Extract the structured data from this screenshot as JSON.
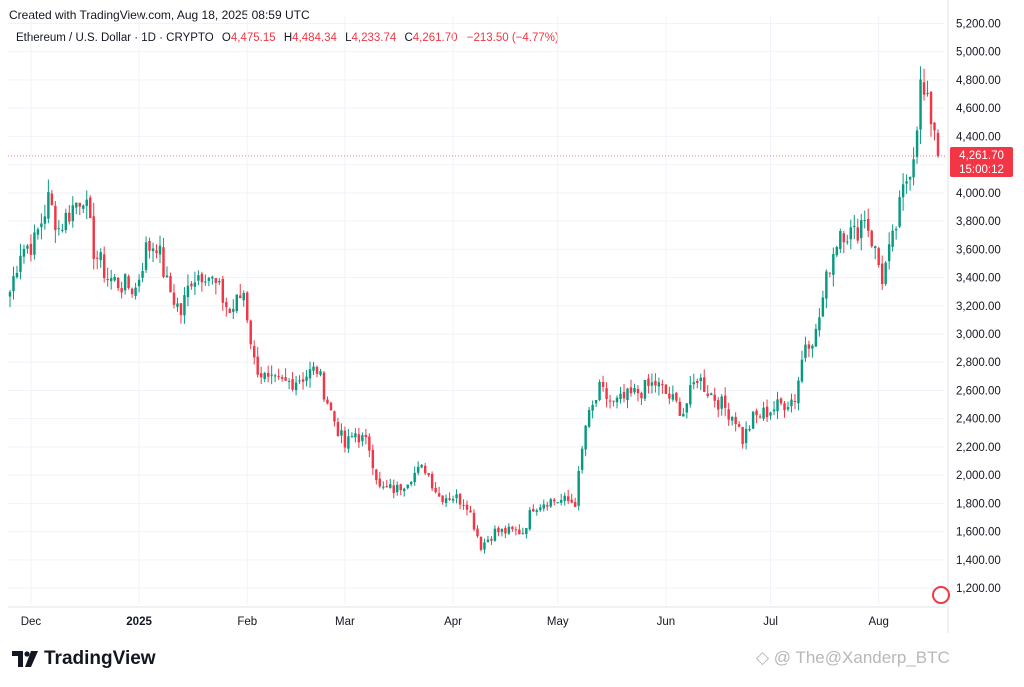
{
  "header": {
    "created": "Created with TradingView.com, Aug 18, 2025 08:59 UTC"
  },
  "legend": {
    "symbol": "Ethereum / U.S. Dollar · 1D · CRYPTO",
    "o_label": "O",
    "o": "4,475.15",
    "h_label": "H",
    "h": "4,484.34",
    "l_label": "L",
    "l": "4,233.74",
    "c_label": "C",
    "c": "4,261.70",
    "change": "−213.50 (−4.77%)"
  },
  "price_badge": {
    "price": "4,261.70",
    "countdown": "15:00:12"
  },
  "brand": {
    "name": "TradingView"
  },
  "watermark": "◇ @ The@Xanderp_BTC",
  "colors": {
    "up": "#089981",
    "down": "#f23645",
    "grid": "#f0f3fa",
    "text": "#131722"
  },
  "chart_data": {
    "type": "candlestick",
    "title": "Ethereum / U.S. Dollar · 1D · CRYPTO",
    "x_tick_labels": [
      "Dec",
      "2025",
      "Feb",
      "Mar",
      "Apr",
      "May",
      "Jun",
      "Jul",
      "Aug"
    ],
    "y_tick_labels": [
      "1,200.00",
      "1,400.00",
      "1,600.00",
      "1,800.00",
      "2,000.00",
      "2,200.00",
      "2,400.00",
      "2,600.00",
      "2,800.00",
      "3,000.00",
      "3,200.00",
      "3,400.00",
      "3,600.00",
      "3,800.00",
      "4,000.00",
      "4,200.00",
      "4,400.00",
      "4,600.00",
      "4,800.00",
      "5,000.00",
      "5,200.00"
    ],
    "ylim": [
      1080,
      5260
    ],
    "last_price": 4261.7,
    "grid": true,
    "close_path": [
      [
        "2024-11-25",
        3300
      ],
      [
        "2024-11-28",
        3600
      ],
      [
        "2024-12-02",
        3650
      ],
      [
        "2024-12-06",
        3950
      ],
      [
        "2024-12-09",
        3750
      ],
      [
        "2024-12-13",
        3900
      ],
      [
        "2024-12-16",
        4000
      ],
      [
        "2024-12-19",
        3600
      ],
      [
        "2024-12-23",
        3400
      ],
      [
        "2024-12-27",
        3350
      ],
      [
        "2024-12-31",
        3320
      ],
      [
        "2025-01-03",
        3600
      ],
      [
        "2025-01-06",
        3650
      ],
      [
        "2025-01-09",
        3350
      ],
      [
        "2025-01-13",
        3150
      ],
      [
        "2025-01-16",
        3400
      ],
      [
        "2025-01-20",
        3450
      ],
      [
        "2025-01-24",
        3300
      ],
      [
        "2025-01-27",
        3150
      ],
      [
        "2025-01-31",
        3300
      ],
      [
        "2025-02-03",
        2800
      ],
      [
        "2025-02-07",
        2650
      ],
      [
        "2025-02-12",
        2650
      ],
      [
        "2025-02-17",
        2700
      ],
      [
        "2025-02-21",
        2750
      ],
      [
        "2025-02-25",
        2450
      ],
      [
        "2025-03-01",
        2200
      ],
      [
        "2025-03-04",
        2300
      ],
      [
        "2025-03-08",
        2200
      ],
      [
        "2025-03-11",
        1900
      ],
      [
        "2025-03-16",
        1900
      ],
      [
        "2025-03-20",
        2000
      ],
      [
        "2025-03-24",
        2050
      ],
      [
        "2025-03-28",
        1850
      ],
      [
        "2025-04-01",
        1850
      ],
      [
        "2025-04-05",
        1800
      ],
      [
        "2025-04-09",
        1500
      ],
      [
        "2025-04-13",
        1600
      ],
      [
        "2025-04-17",
        1600
      ],
      [
        "2025-04-21",
        1600
      ],
      [
        "2025-04-24",
        1780
      ],
      [
        "2025-04-28",
        1820
      ],
      [
        "2025-05-02",
        1820
      ],
      [
        "2025-05-06",
        1810
      ],
      [
        "2025-05-09",
        2350
      ],
      [
        "2025-05-13",
        2600
      ],
      [
        "2025-05-17",
        2500
      ],
      [
        "2025-05-21",
        2550
      ],
      [
        "2025-05-25",
        2600
      ],
      [
        "2025-05-29",
        2650
      ],
      [
        "2025-06-02",
        2550
      ],
      [
        "2025-06-06",
        2450
      ],
      [
        "2025-06-10",
        2700
      ],
      [
        "2025-06-13",
        2600
      ],
      [
        "2025-06-17",
        2500
      ],
      [
        "2025-06-21",
        2400
      ],
      [
        "2025-06-23",
        2250
      ],
      [
        "2025-06-26",
        2400
      ],
      [
        "2025-06-30",
        2450
      ],
      [
        "2025-07-04",
        2500
      ],
      [
        "2025-07-08",
        2550
      ],
      [
        "2025-07-11",
        2950
      ],
      [
        "2025-07-14",
        3000
      ],
      [
        "2025-07-18",
        3500
      ],
      [
        "2025-07-21",
        3750
      ],
      [
        "2025-07-25",
        3700
      ],
      [
        "2025-07-28",
        3850
      ],
      [
        "2025-08-02",
        3400
      ],
      [
        "2025-08-05",
        3650
      ],
      [
        "2025-08-08",
        4000
      ],
      [
        "2025-08-11",
        4300
      ],
      [
        "2025-08-13",
        4750
      ],
      [
        "2025-08-15",
        4600
      ],
      [
        "2025-08-17",
        4475
      ],
      [
        "2025-08-18",
        4261.7
      ]
    ]
  }
}
